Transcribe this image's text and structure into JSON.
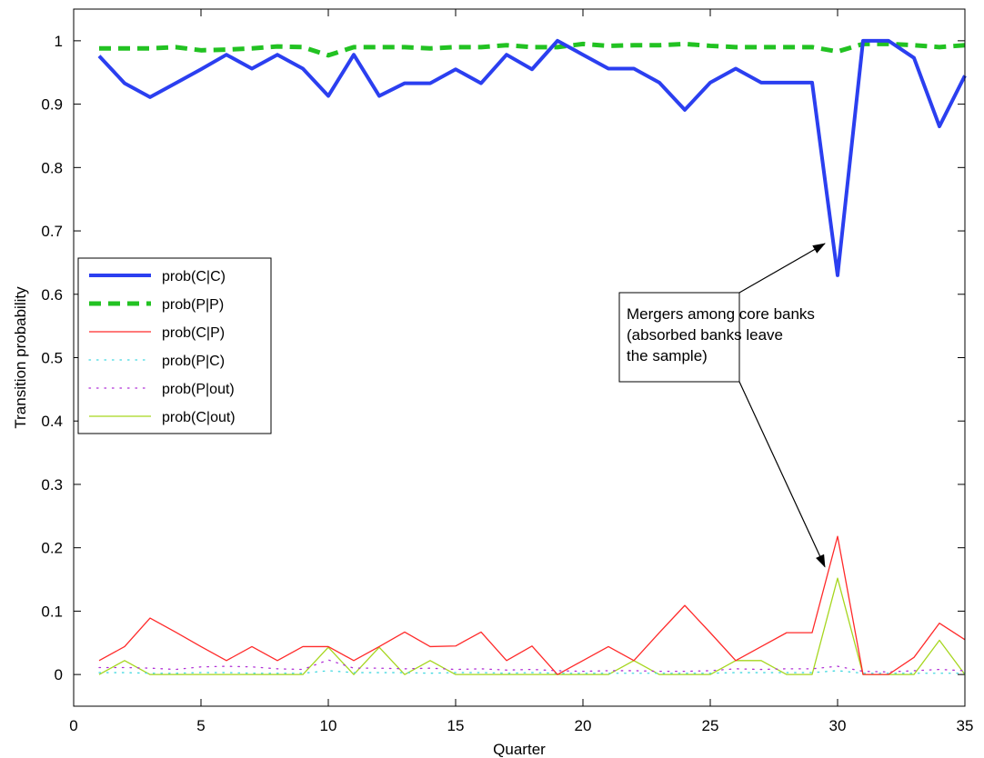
{
  "chart_data": {
    "type": "line",
    "xlabel": "Quarter",
    "ylabel": "Transition probability",
    "xlim": [
      0,
      35
    ],
    "ylim": [
      -0.05,
      1.05
    ],
    "xticks": [
      0,
      5,
      10,
      15,
      20,
      25,
      30,
      35
    ],
    "yticks": [
      0,
      0.1,
      0.2,
      0.3,
      0.4,
      0.5,
      0.6,
      0.7,
      0.8,
      0.9,
      1
    ],
    "ytick_labels": [
      "0",
      "0.1",
      "0.2",
      "0.3",
      "0.4",
      "0.5",
      "0.6",
      "0.7",
      "0.8",
      "0.9",
      "1"
    ],
    "grid": false,
    "legend_position": "center-left",
    "x": [
      1,
      2,
      3,
      4,
      5,
      6,
      7,
      8,
      9,
      10,
      11,
      12,
      13,
      14,
      15,
      16,
      17,
      18,
      19,
      20,
      21,
      22,
      23,
      24,
      25,
      26,
      27,
      28,
      29,
      30,
      31,
      32,
      33,
      34,
      35
    ],
    "series": [
      {
        "name": "prob(C|C)",
        "color": "#2b3ff0",
        "style": "solid-thick",
        "values": [
          0.976,
          0.933,
          0.911,
          0.933,
          0.955,
          0.978,
          0.956,
          0.978,
          0.956,
          0.913,
          0.978,
          0.913,
          0.933,
          0.933,
          0.955,
          0.933,
          0.978,
          0.955,
          1.0,
          0.978,
          0.956,
          0.956,
          0.934,
          0.891,
          0.934,
          0.956,
          0.934,
          0.934,
          0.934,
          0.63,
          1.0,
          1.0,
          0.973,
          0.865,
          0.945
        ]
      },
      {
        "name": "prob(P|P)",
        "color": "#22c222",
        "style": "dashed-thick",
        "values": [
          0.988,
          0.988,
          0.988,
          0.99,
          0.985,
          0.986,
          0.988,
          0.991,
          0.99,
          0.977,
          0.99,
          0.99,
          0.99,
          0.988,
          0.99,
          0.99,
          0.993,
          0.99,
          0.99,
          0.995,
          0.992,
          0.993,
          0.993,
          0.995,
          0.992,
          0.99,
          0.99,
          0.99,
          0.99,
          0.983,
          0.995,
          0.995,
          0.993,
          0.99,
          0.993
        ]
      },
      {
        "name": "prob(C|P)",
        "color": "#ff2a2a",
        "style": "solid-thin",
        "values": [
          0.022,
          0.044,
          0.089,
          0.067,
          0.044,
          0.022,
          0.044,
          0.022,
          0.044,
          0.044,
          0.022,
          0.044,
          0.067,
          0.044,
          0.045,
          0.067,
          0.022,
          0.045,
          0.0,
          0.022,
          0.044,
          0.022,
          0.066,
          0.109,
          0.066,
          0.022,
          0.044,
          0.066,
          0.066,
          0.218,
          0.0,
          0.0,
          0.027,
          0.081,
          0.055
        ]
      },
      {
        "name": "prob(P|C)",
        "color": "#41d8e0",
        "style": "dotted",
        "values": [
          0.003,
          0.003,
          0.002,
          0.002,
          0.003,
          0.003,
          0.002,
          0.002,
          0.002,
          0.006,
          0.003,
          0.003,
          0.003,
          0.002,
          0.003,
          0.003,
          0.002,
          0.003,
          0.002,
          0.002,
          0.002,
          0.002,
          0.002,
          0.002,
          0.002,
          0.003,
          0.003,
          0.003,
          0.003,
          0.006,
          0.002,
          0.002,
          0.002,
          0.002,
          0.002
        ]
      },
      {
        "name": "prob(P|out)",
        "color": "#b02fd6",
        "style": "dotted",
        "values": [
          0.011,
          0.011,
          0.01,
          0.008,
          0.012,
          0.013,
          0.012,
          0.009,
          0.008,
          0.023,
          0.01,
          0.01,
          0.009,
          0.01,
          0.008,
          0.009,
          0.007,
          0.008,
          0.006,
          0.005,
          0.006,
          0.006,
          0.005,
          0.005,
          0.006,
          0.009,
          0.008,
          0.009,
          0.009,
          0.013,
          0.005,
          0.004,
          0.006,
          0.008,
          0.006
        ]
      },
      {
        "name": "prob(C|out)",
        "color": "#a6d61e",
        "style": "solid-thin",
        "values": [
          0.0,
          0.022,
          0.0,
          0.0,
          0.0,
          0.0,
          0.0,
          0.0,
          0.0,
          0.043,
          0.0,
          0.043,
          0.0,
          0.022,
          0.0,
          0.0,
          0.0,
          0.0,
          0.0,
          0.0,
          0.0,
          0.022,
          0.0,
          0.0,
          0.0,
          0.022,
          0.022,
          0.0,
          0.0,
          0.152,
          0.0,
          0.0,
          0.0,
          0.054,
          0.0
        ]
      }
    ],
    "annotation": {
      "lines": [
        "Mergers among core banks",
        "(absorbed banks leave",
        "the sample)"
      ],
      "arrow_targets": [
        [
          29.5,
          0.68
        ],
        [
          29.5,
          0.17
        ]
      ]
    }
  }
}
